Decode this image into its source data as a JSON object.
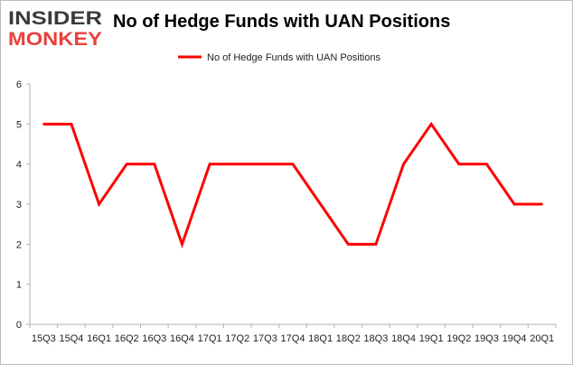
{
  "logo": {
    "line1": "INSIDER",
    "line2": "MONKEY"
  },
  "chart_data": {
    "type": "line",
    "title": "No of Hedge Funds with UAN Positions",
    "categories": [
      "15Q3",
      "15Q4",
      "16Q1",
      "16Q2",
      "16Q3",
      "16Q4",
      "17Q1",
      "17Q2",
      "17Q3",
      "17Q4",
      "18Q1",
      "18Q2",
      "18Q3",
      "18Q4",
      "19Q1",
      "19Q2",
      "19Q3",
      "19Q4",
      "20Q1"
    ],
    "series": [
      {
        "name": "No of Hedge Funds with UAN Positions",
        "values": [
          5,
          5,
          3,
          4,
          4,
          2,
          4,
          4,
          4,
          4,
          3,
          2,
          2,
          4,
          5,
          4,
          4,
          3,
          3
        ],
        "color": "#ff0000"
      }
    ],
    "ylim": [
      0,
      6
    ],
    "yticks": [
      0,
      1,
      2,
      3,
      4,
      5,
      6
    ],
    "xlabel": "",
    "ylabel": "",
    "grid": false,
    "legend_position": "top-center",
    "colors": {
      "logo_dark": "#3a3a3a",
      "logo_red": "#e8413c",
      "axis": "#b0b0b0"
    }
  }
}
